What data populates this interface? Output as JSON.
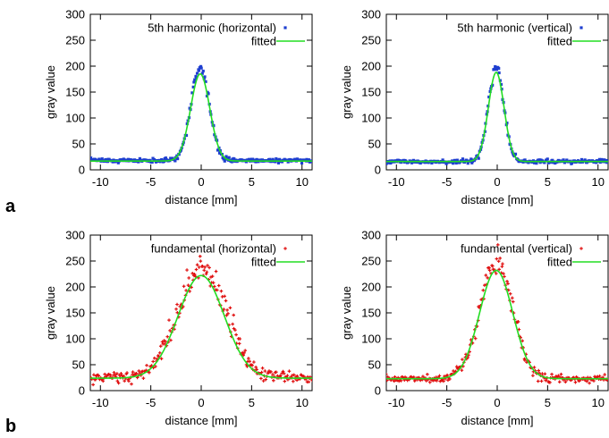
{
  "figure": {
    "panel_labels": [
      "a",
      "b"
    ]
  },
  "chart_data": [
    {
      "type": "scatter",
      "panel": "a",
      "xlabel": "distance [mm]",
      "ylabel": "gray value",
      "xlim": [
        -11,
        11
      ],
      "ylim": [
        0,
        300
      ],
      "xticks": [
        -10,
        -5,
        0,
        5,
        10
      ],
      "yticks": [
        0,
        50,
        100,
        150,
        200,
        250,
        300
      ],
      "grid": false,
      "legend_placement": "top",
      "series": [
        {
          "name": "5th harmonic (horizontal)",
          "kind": "points",
          "color": "#1f3fd0",
          "marker": "square",
          "profile": {
            "center": -0.1,
            "peak": 200,
            "baseline": 18,
            "width": 0.9,
            "noise": 5
          }
        },
        {
          "name": "fitted",
          "kind": "line",
          "color": "#22dd22",
          "profile": {
            "center": -0.1,
            "peak": 185,
            "baseline": 17,
            "width": 0.95
          }
        }
      ]
    },
    {
      "type": "scatter",
      "panel": "a",
      "xlabel": "distance [mm]",
      "ylabel": "gray value",
      "xlim": [
        -11,
        11
      ],
      "ylim": [
        0,
        300
      ],
      "xticks": [
        -10,
        -5,
        0,
        5,
        10
      ],
      "yticks": [
        0,
        50,
        100,
        150,
        200,
        250,
        300
      ],
      "grid": false,
      "legend_placement": "top",
      "series": [
        {
          "name": "5th harmonic (vertical)",
          "kind": "points",
          "color": "#1f3fd0",
          "marker": "square",
          "profile": {
            "center": -0.1,
            "peak": 200,
            "baseline": 16,
            "width": 0.75,
            "noise": 5
          }
        },
        {
          "name": "fitted",
          "kind": "line",
          "color": "#22dd22",
          "profile": {
            "center": -0.1,
            "peak": 188,
            "baseline": 16,
            "width": 0.78
          }
        }
      ]
    },
    {
      "type": "scatter",
      "panel": "b",
      "xlabel": "distance [mm]",
      "ylabel": "gray value",
      "xlim": [
        -11,
        11
      ],
      "ylim": [
        0,
        300
      ],
      "xticks": [
        -10,
        -5,
        0,
        5,
        10
      ],
      "yticks": [
        0,
        50,
        100,
        150,
        200,
        250,
        300
      ],
      "grid": false,
      "legend_placement": "top",
      "series": [
        {
          "name": "fundamental (horizontal)",
          "kind": "points",
          "color": "#e01010",
          "marker": "plus",
          "profile": {
            "center": 0.1,
            "peak": 235,
            "baseline": 25,
            "width": 2.4,
            "noise": 11
          }
        },
        {
          "name": "fitted",
          "kind": "line",
          "color": "#22dd22",
          "profile": {
            "center": 0.0,
            "peak": 222,
            "baseline": 24,
            "width": 2.3
          }
        }
      ]
    },
    {
      "type": "scatter",
      "panel": "b",
      "xlabel": "distance [mm]",
      "ylabel": "gray value",
      "xlim": [
        -11,
        11
      ],
      "ylim": [
        0,
        300
      ],
      "xticks": [
        -10,
        -5,
        0,
        5,
        10
      ],
      "yticks": [
        0,
        50,
        100,
        150,
        200,
        250,
        300
      ],
      "grid": false,
      "legend_placement": "top",
      "series": [
        {
          "name": "fundamental (vertical)",
          "kind": "points",
          "color": "#e01010",
          "marker": "plus",
          "profile": {
            "center": -0.1,
            "peak": 245,
            "baseline": 23,
            "width": 1.6,
            "noise": 9
          }
        },
        {
          "name": "fitted",
          "kind": "line",
          "color": "#22dd22",
          "profile": {
            "center": -0.1,
            "peak": 232,
            "baseline": 23,
            "width": 1.65
          }
        }
      ]
    }
  ]
}
